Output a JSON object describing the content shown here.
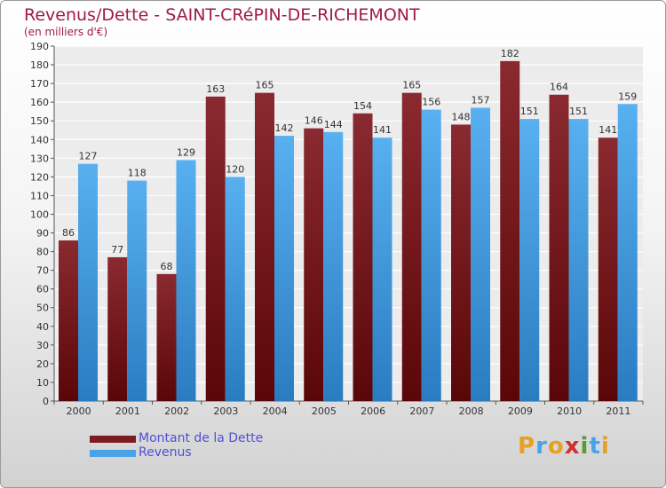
{
  "title": "Revenus/Dette - SAINT-CRéPIN-DE-RICHEMONT",
  "subtitle": "(en milliers d'€)",
  "brand": "Proxiti",
  "colors": {
    "dette": "#7a1c22",
    "revenus": "#4aa3e6",
    "title": "#a0194a",
    "legend_text": "#5050d8"
  },
  "chart_data": {
    "type": "bar",
    "title": "Revenus/Dette - SAINT-CRéPIN-DE-RICHEMONT",
    "ylabel": "(en milliers d'€)",
    "xlabel": "",
    "categories": [
      "2000",
      "2001",
      "2002",
      "2003",
      "2004",
      "2005",
      "2006",
      "2007",
      "2008",
      "2009",
      "2010",
      "2011"
    ],
    "series": [
      {
        "name": "Montant de la Dette",
        "values": [
          86,
          77,
          68,
          163,
          165,
          146,
          154,
          165,
          148,
          182,
          164,
          141
        ]
      },
      {
        "name": "Revenus",
        "values": [
          127,
          118,
          129,
          120,
          142,
          144,
          141,
          156,
          157,
          151,
          151,
          159
        ]
      }
    ],
    "ylim": [
      0,
      190
    ],
    "ytick_step": 10,
    "grid": true,
    "legend": "bottom-left"
  }
}
